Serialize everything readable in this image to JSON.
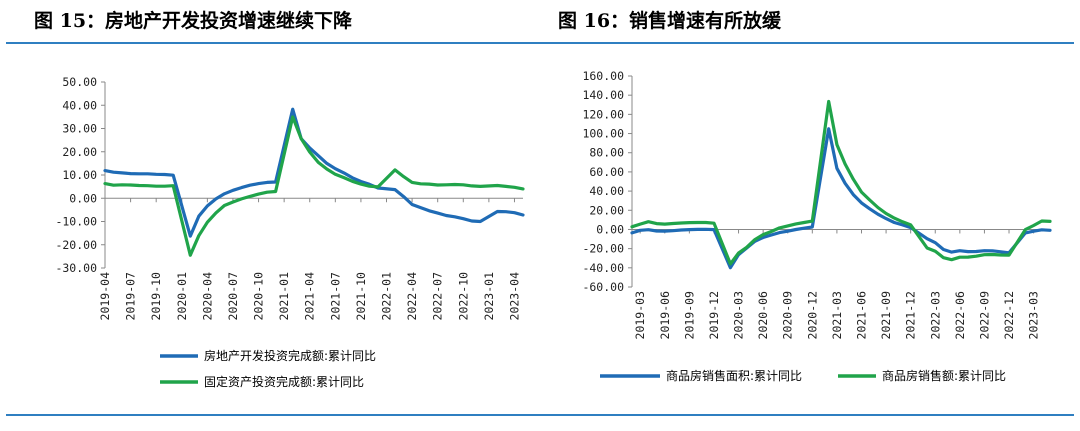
{
  "panels": {
    "left_title": "图 15：房地产开发投资增速继续下降",
    "right_title": "图 16：销售增速有所放缓"
  },
  "colors": {
    "blue": "#1f6bb5",
    "green": "#20a44a",
    "rule": "#2f7fc1"
  },
  "chart_data": [
    {
      "type": "line",
      "title": "图 15：房地产开发投资增速继续下降",
      "xlabel": "",
      "ylabel": "",
      "ylim": [
        -30,
        50
      ],
      "yticks": [
        "50.00",
        "40.00",
        "30.00",
        "20.00",
        "10.00",
        "0.00",
        "-10.00",
        "-20.00",
        "-30.00"
      ],
      "x": [
        "2019-04",
        "2019-05",
        "2019-06",
        "2019-07",
        "2019-08",
        "2019-09",
        "2019-10",
        "2019-11",
        "2019-12",
        "2020-02",
        "2020-03",
        "2020-04",
        "2020-05",
        "2020-06",
        "2020-07",
        "2020-08",
        "2020-09",
        "2020-10",
        "2020-11",
        "2020-12",
        "2021-02",
        "2021-03",
        "2021-04",
        "2021-05",
        "2021-06",
        "2021-07",
        "2021-08",
        "2021-09",
        "2021-10",
        "2021-11",
        "2021-12",
        "2022-02",
        "2022-03",
        "2022-04",
        "2022-05",
        "2022-06",
        "2022-07",
        "2022-08",
        "2022-09",
        "2022-10",
        "2022-11",
        "2022-12",
        "2023-02",
        "2023-03",
        "2023-04",
        "2023-05"
      ],
      "xticks": [
        "2019-04",
        "2019-07",
        "2019-10",
        "2020-01",
        "2020-04",
        "2020-07",
        "2020-10",
        "2021-01",
        "2021-04",
        "2021-07",
        "2021-10",
        "2022-01",
        "2022-04",
        "2022-07",
        "2022-10",
        "2023-01",
        "2023-04"
      ],
      "legend_position": "bottom",
      "grid": false,
      "series": [
        {
          "name": "房地产开发投资完成额:累计同比",
          "values": [
            11.9,
            11.2,
            10.9,
            10.6,
            10.5,
            10.5,
            10.3,
            10.2,
            9.9,
            -16.3,
            -7.7,
            -3.3,
            -0.3,
            1.9,
            3.4,
            4.6,
            5.6,
            6.3,
            6.8,
            7.0,
            38.3,
            25.6,
            21.6,
            18.3,
            15.0,
            12.7,
            10.9,
            8.8,
            7.2,
            6.0,
            4.4,
            3.7,
            0.7,
            -2.7,
            -4.0,
            -5.4,
            -6.4,
            -7.4,
            -8.0,
            -8.8,
            -9.8,
            -10.0,
            -5.7,
            -5.8,
            -6.2,
            -7.2
          ]
        },
        {
          "name": "固定资产投资完成额:累计同比",
          "values": [
            6.3,
            5.6,
            5.8,
            5.7,
            5.5,
            5.4,
            5.2,
            5.2,
            5.4,
            -24.5,
            -16.1,
            -10.3,
            -6.3,
            -3.1,
            -1.6,
            -0.3,
            0.8,
            1.8,
            2.6,
            2.9,
            35.0,
            25.6,
            19.9,
            15.4,
            12.6,
            10.3,
            8.9,
            7.3,
            6.1,
            5.2,
            4.9,
            12.2,
            9.3,
            6.8,
            6.2,
            6.1,
            5.7,
            5.8,
            5.9,
            5.8,
            5.3,
            5.1,
            5.5,
            5.1,
            4.7,
            4.0
          ]
        }
      ]
    },
    {
      "type": "line",
      "title": "图 16：销售增速有所放缓",
      "xlabel": "",
      "ylabel": "",
      "ylim": [
        -60,
        160
      ],
      "yticks": [
        "160.00",
        "140.00",
        "120.00",
        "100.00",
        "80.00",
        "60.00",
        "40.00",
        "20.00",
        "0.00",
        "-20.00",
        "-40.00",
        "-60.00"
      ],
      "x": [
        "2019-02",
        "2019-03",
        "2019-04",
        "2019-05",
        "2019-06",
        "2019-07",
        "2019-08",
        "2019-09",
        "2019-10",
        "2019-11",
        "2019-12",
        "2020-02",
        "2020-03",
        "2020-04",
        "2020-05",
        "2020-06",
        "2020-07",
        "2020-08",
        "2020-09",
        "2020-10",
        "2020-11",
        "2020-12",
        "2021-02",
        "2021-03",
        "2021-04",
        "2021-05",
        "2021-06",
        "2021-07",
        "2021-08",
        "2021-09",
        "2021-10",
        "2021-11",
        "2021-12",
        "2022-02",
        "2022-03",
        "2022-04",
        "2022-05",
        "2022-06",
        "2022-07",
        "2022-08",
        "2022-09",
        "2022-10",
        "2022-11",
        "2022-12",
        "2023-02",
        "2023-03",
        "2023-04",
        "2023-05"
      ],
      "xticks": [
        "2019-03",
        "2019-06",
        "2019-09",
        "2019-12",
        "2020-03",
        "2020-06",
        "2020-09",
        "2020-12",
        "2021-03",
        "2021-06",
        "2021-09",
        "2021-12",
        "2022-03",
        "2022-06",
        "2022-09",
        "2022-12",
        "2023-03"
      ],
      "legend_position": "bottom",
      "grid": false,
      "series": [
        {
          "name": "商品房销售面积:累计同比",
          "values": [
            -3.6,
            -0.9,
            -0.3,
            -1.6,
            -1.8,
            -1.3,
            -0.6,
            -0.1,
            0.1,
            0.2,
            -0.1,
            -39.9,
            -26.3,
            -19.3,
            -12.3,
            -8.4,
            -5.8,
            -3.3,
            -1.8,
            0.0,
            1.3,
            2.6,
            104.9,
            63.8,
            48.1,
            36.3,
            27.7,
            21.5,
            15.9,
            11.3,
            7.3,
            4.8,
            1.9,
            -9.6,
            -13.8,
            -20.9,
            -23.6,
            -22.2,
            -23.1,
            -23.0,
            -22.2,
            -22.3,
            -23.3,
            -24.3,
            -3.6,
            -1.8,
            -0.4,
            -0.9
          ]
        },
        {
          "name": "商品房销售额:累计同比",
          "values": [
            2.8,
            5.6,
            8.1,
            6.1,
            5.6,
            6.2,
            6.7,
            7.1,
            7.3,
            7.3,
            6.5,
            -35.9,
            -24.7,
            -18.6,
            -10.6,
            -5.4,
            -2.1,
            1.6,
            3.7,
            5.8,
            7.2,
            8.7,
            133.4,
            88.5,
            68.2,
            52.4,
            38.9,
            30.7,
            22.9,
            16.6,
            11.8,
            8.0,
            4.8,
            -19.3,
            -22.7,
            -29.5,
            -31.5,
            -28.9,
            -28.8,
            -27.9,
            -26.3,
            -26.1,
            -26.6,
            -26.7,
            -0.1,
            4.1,
            8.8,
            8.4
          ]
        }
      ]
    }
  ]
}
